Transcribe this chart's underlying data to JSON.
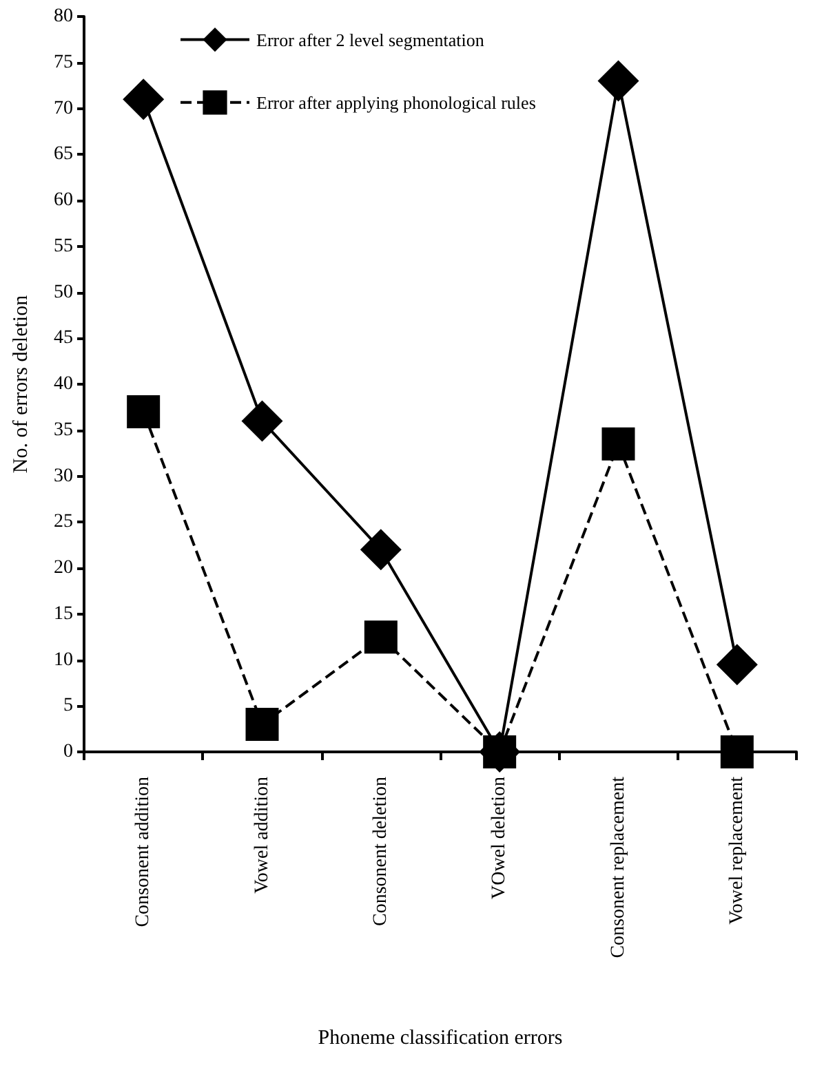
{
  "chart_data": {
    "type": "line",
    "xlabel": "Phoneme classification errors",
    "ylabel": "No. of errors deletion",
    "categories": [
      "Consonent addition",
      "Vowel addition",
      "Consonent deletion",
      "VOwel deletion",
      "Consonent replacement",
      "Vowel replacement"
    ],
    "series": [
      {
        "name": "Error after 2 level segmentation",
        "color": "#000000",
        "values": [
          71,
          36,
          22,
          0,
          73,
          9.5
        ],
        "marker": "diamond",
        "line_style": "solid"
      },
      {
        "name": "Error after applying phonological rules",
        "color": "#000000",
        "values": [
          37,
          3,
          12.5,
          0,
          33.5,
          0
        ],
        "marker": "square",
        "line_style": "dashed"
      }
    ],
    "ylim": [
      0,
      80
    ],
    "yticks": [
      0,
      5,
      10,
      15,
      20,
      25,
      30,
      35,
      40,
      45,
      50,
      55,
      60,
      65,
      70,
      75,
      80
    ],
    "grid": false,
    "legend": "top left"
  }
}
